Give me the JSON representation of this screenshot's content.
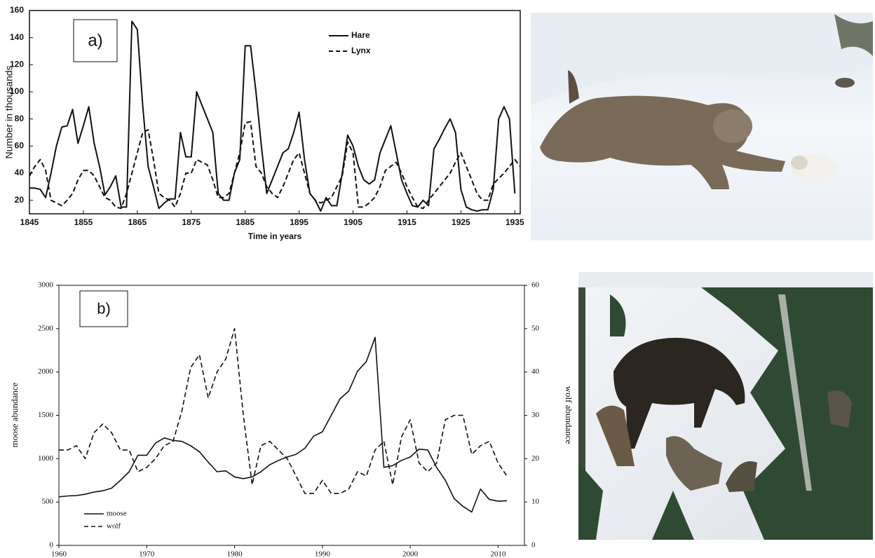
{
  "chart_data": [
    {
      "type": "line",
      "annotation": "a)",
      "xlabel": "Time in years",
      "ylabel": "Number in thousands",
      "x": [
        1845,
        1846,
        1847,
        1848,
        1849,
        1850,
        1851,
        1852,
        1853,
        1854,
        1855,
        1856,
        1857,
        1858,
        1859,
        1860,
        1861,
        1862,
        1863,
        1864,
        1865,
        1866,
        1867,
        1868,
        1869,
        1870,
        1871,
        1872,
        1873,
        1874,
        1875,
        1876,
        1877,
        1878,
        1879,
        1880,
        1881,
        1882,
        1883,
        1884,
        1885,
        1886,
        1887,
        1888,
        1889,
        1890,
        1891,
        1892,
        1893,
        1894,
        1895,
        1896,
        1897,
        1898,
        1899,
        1900,
        1901,
        1902,
        1903,
        1904,
        1905,
        1906,
        1907,
        1908,
        1909,
        1910,
        1911,
        1912,
        1913,
        1914,
        1915,
        1916,
        1917,
        1918,
        1919,
        1920,
        1921,
        1922,
        1923,
        1924,
        1925,
        1926,
        1927,
        1928,
        1929,
        1930,
        1931,
        1932,
        1933,
        1934,
        1935,
        1936
      ],
      "series": [
        {
          "name": "Hare",
          "color": "#111111",
          "line_style": "solid",
          "values": [
            29,
            29,
            28,
            22,
            40,
            60,
            74,
            75,
            87,
            62,
            75,
            89,
            62,
            45,
            24,
            30,
            38,
            15,
            15,
            152,
            146,
            90,
            45,
            30,
            14,
            18,
            21,
            21,
            70,
            52,
            52,
            100,
            90,
            80,
            70,
            25,
            20,
            20,
            40,
            50,
            134,
            134,
            100,
            60,
            25,
            35,
            45,
            55,
            58,
            70,
            85,
            50,
            25,
            20,
            12,
            22,
            16,
            16,
            40,
            68,
            60,
            45,
            35,
            32,
            35,
            55,
            65,
            75,
            55,
            35,
            25,
            16,
            15,
            20,
            16,
            58,
            65,
            73,
            80,
            70,
            28,
            15,
            13,
            12,
            13,
            13,
            28,
            80,
            89,
            80,
            25,
            null
          ]
        },
        {
          "name": "Lynx",
          "color": "#111111",
          "line_style": "dashed",
          "values": [
            38,
            45,
            50,
            42,
            20,
            18,
            16,
            20,
            25,
            35,
            42,
            42,
            38,
            30,
            22,
            20,
            15,
            14,
            25,
            40,
            55,
            70,
            72,
            50,
            25,
            22,
            20,
            15,
            25,
            40,
            40,
            50,
            48,
            46,
            35,
            22,
            22,
            25,
            40,
            55,
            77,
            78,
            45,
            40,
            30,
            25,
            22,
            30,
            40,
            50,
            55,
            40,
            25,
            20,
            18,
            20,
            22,
            30,
            38,
            63,
            55,
            15,
            15,
            18,
            22,
            30,
            42,
            45,
            48,
            40,
            30,
            22,
            15,
            14,
            20,
            25,
            30,
            35,
            40,
            48,
            55,
            45,
            35,
            25,
            20,
            20,
            32,
            36,
            40,
            45,
            50,
            45
          ]
        }
      ],
      "xlim": [
        1845,
        1936
      ],
      "xticks": [
        1845,
        1855,
        1865,
        1875,
        1885,
        1895,
        1905,
        1915,
        1925,
        1935
      ],
      "ylim": [
        10,
        160
      ],
      "yticks": [
        20,
        40,
        60,
        80,
        100,
        120,
        140,
        160
      ],
      "grid": false,
      "legend": "upper center"
    },
    {
      "type": "line",
      "annotation": "b)",
      "ylabel": "moose abundance",
      "y2label": "wolf abundance",
      "x": [
        1960,
        1961,
        1962,
        1963,
        1964,
        1965,
        1966,
        1967,
        1968,
        1969,
        1970,
        1971,
        1972,
        1973,
        1974,
        1975,
        1976,
        1977,
        1978,
        1979,
        1980,
        1981,
        1982,
        1983,
        1984,
        1985,
        1986,
        1987,
        1988,
        1989,
        1990,
        1991,
        1992,
        1993,
        1994,
        1995,
        1996,
        1997,
        1998,
        1999,
        2000,
        2001,
        2002,
        2003,
        2004,
        2005,
        2006,
        2007,
        2008,
        2009,
        2010,
        2011
      ],
      "series": [
        {
          "name": "moose",
          "color": "#111111",
          "line_style": "solid",
          "values": [
            560,
            570,
            575,
            590,
            615,
            630,
            660,
            750,
            850,
            1040,
            1040,
            1180,
            1240,
            1210,
            1200,
            1150,
            1080,
            960,
            850,
            860,
            790,
            770,
            790,
            850,
            930,
            980,
            1020,
            1050,
            1120,
            1260,
            1310,
            1500,
            1690,
            1780,
            2010,
            2120,
            2400,
            900,
            920,
            980,
            1020,
            1110,
            1100,
            900,
            750,
            540,
            450,
            385,
            650,
            530,
            510,
            515
          ]
        },
        {
          "name": "wolf",
          "color": "#111111",
          "line_style": "dashed",
          "axis": "y2",
          "values": [
            22,
            22,
            23,
            20,
            26,
            28,
            26,
            22,
            22,
            17,
            18,
            20,
            23,
            24,
            31,
            41,
            44,
            34,
            40,
            43,
            50,
            30,
            14,
            23,
            24,
            22,
            20,
            16,
            12,
            12,
            15,
            12,
            12,
            13,
            17,
            16,
            22,
            24,
            14,
            25,
            29,
            19,
            17,
            19,
            29,
            30,
            30,
            21,
            23,
            24,
            19,
            16
          ]
        }
      ],
      "xlim": [
        1960,
        2013
      ],
      "xticks": [
        1960,
        1970,
        1980,
        1990,
        2000,
        2010
      ],
      "ylim": [
        0,
        3000
      ],
      "yticks": [
        0,
        500,
        1000,
        1500,
        2000,
        2500,
        3000
      ],
      "y2lim": [
        0,
        60
      ],
      "y2ticks": [
        0,
        10,
        20,
        30,
        40,
        50,
        60
      ],
      "grid": false,
      "legend": "lower left"
    }
  ]
}
